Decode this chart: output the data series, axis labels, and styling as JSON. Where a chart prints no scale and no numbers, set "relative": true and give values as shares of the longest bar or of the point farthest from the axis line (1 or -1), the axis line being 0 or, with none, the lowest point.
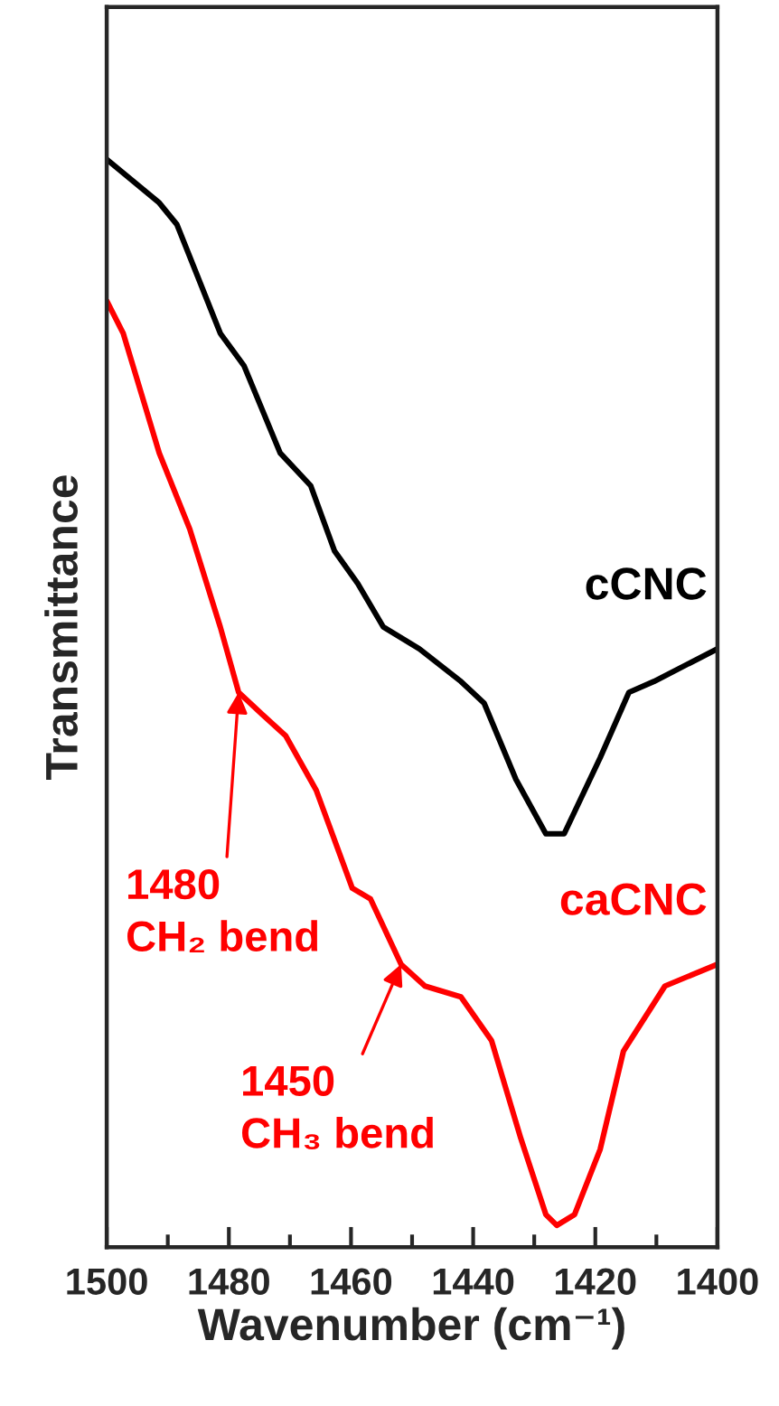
{
  "chart_data": {
    "type": "line",
    "relative": true,
    "xlabel": "Wavenumber (cm⁻¹)",
    "ylabel": "Transmittance",
    "xlim": [
      1500,
      1400
    ],
    "xticks": [
      1500,
      {
        "value": 1490,
        "label": null
      },
      1480,
      {
        "value": 1470,
        "label": null
      },
      1460,
      {
        "value": 1450,
        "label": null
      },
      1440,
      {
        "value": 1430,
        "label": null
      },
      1420,
      {
        "value": 1410,
        "label": null
      },
      1400
    ],
    "series": [
      {
        "name": "cCNC",
        "color": "#000000",
        "x": [
          1500,
          1491.4,
          1488.5,
          1481.4,
          1477.5,
          1471.6,
          1466.6,
          1462.7,
          1458.9,
          1454.7,
          1448.8,
          1442.0,
          1438.2,
          1433.0,
          1428.1,
          1425.1,
          1419.2,
          1414.5,
          1410.4,
          1400
        ],
        "values": [
          1.0,
          0.96,
          0.94,
          0.84,
          0.81,
          0.73,
          0.7,
          0.64,
          0.61,
          0.57,
          0.55,
          0.52,
          0.5,
          0.43,
          0.38,
          0.38,
          0.45,
          0.51,
          0.52,
          0.55
        ]
      },
      {
        "name": "caCNC",
        "color": "#ff0000",
        "x": [
          1500,
          1497.3,
          1491.4,
          1486.4,
          1481.4,
          1478.4,
          1474.6,
          1470.7,
          1465.7,
          1459.8,
          1456.8,
          1451.8,
          1447.9,
          1442.0,
          1437.0,
          1432.2,
          1428.1,
          1426.3,
          1423.4,
          1419.2,
          1415.4,
          1408.6,
          1400
        ],
        "values": [
          0.87,
          0.84,
          0.73,
          0.66,
          0.57,
          0.51,
          0.49,
          0.47,
          0.42,
          0.33,
          0.32,
          0.26,
          0.24,
          0.23,
          0.19,
          0.1,
          0.03,
          0.02,
          0.03,
          0.09,
          0.18,
          0.24,
          0.26
        ]
      }
    ],
    "annotations": [
      {
        "text": "1480\nCH₂ bend",
        "x": 1478.4,
        "y": 0.51
      },
      {
        "text": "1450\nCH₃ bend",
        "x": 1451.8,
        "y": 0.26
      }
    ],
    "grid": false,
    "legend": false,
    "marker": "none",
    "line_style": "solid"
  }
}
